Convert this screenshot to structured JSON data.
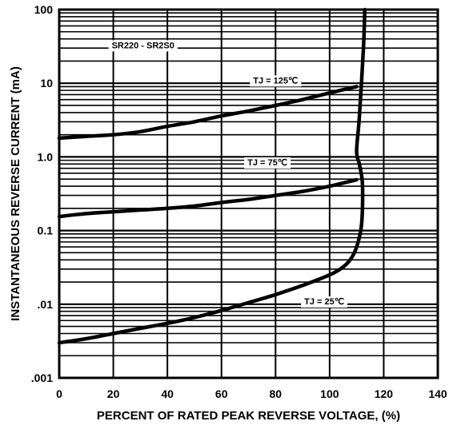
{
  "chart_data": {
    "type": "line",
    "title": "",
    "xlabel": "PERCENT OF RATED PEAK REVERSE VOLTAGE, (%)",
    "ylabel": "INSTANTANEOUS REVERSE CURRENT (mA)",
    "x_scale": "linear",
    "y_scale": "log",
    "xlim": [
      0,
      140
    ],
    "ylim": [
      0.001,
      100
    ],
    "x_ticks": [
      0,
      20,
      40,
      60,
      80,
      100,
      120,
      140
    ],
    "x_tick_labels": [
      "0",
      "20",
      "40",
      "60",
      "80",
      "100",
      "120",
      "140"
    ],
    "y_ticks": [
      0.001,
      0.01,
      0.1,
      1,
      10,
      100
    ],
    "y_tick_labels": [
      ".001",
      ".01",
      "0.1",
      "1.0",
      "10",
      "100"
    ],
    "grid": true,
    "annotations": [
      {
        "text": "SR220 - SR2S0",
        "x": 31,
        "y": 33
      },
      {
        "text": "TJ = 125℃",
        "x": 80,
        "y": 11
      },
      {
        "text": "TJ = 75℃",
        "x": 77,
        "y": 0.85
      },
      {
        "text": "TJ = 25℃",
        "x": 98,
        "y": 0.011
      }
    ],
    "series": [
      {
        "name": "TJ = 125℃",
        "x": [
          0,
          10,
          20,
          30,
          40,
          50,
          60,
          70,
          80,
          90,
          100,
          110
        ],
        "y": [
          1.8,
          1.9,
          2.0,
          2.2,
          2.6,
          3.0,
          3.6,
          4.2,
          5.0,
          6.0,
          7.4,
          9.0
        ]
      },
      {
        "name": "TJ = 75℃",
        "x": [
          0,
          10,
          20,
          30,
          40,
          50,
          60,
          70,
          80,
          90,
          100,
          110
        ],
        "y": [
          0.155,
          0.17,
          0.18,
          0.19,
          0.2,
          0.215,
          0.24,
          0.265,
          0.3,
          0.34,
          0.4,
          0.49
        ]
      },
      {
        "name": "TJ = 25℃",
        "x": [
          0,
          10,
          20,
          30,
          40,
          50,
          60,
          70,
          80,
          90,
          100,
          105,
          108,
          110,
          111.5,
          112,
          112.2,
          112,
          111,
          110,
          111,
          112.5,
          113
        ],
        "y": [
          0.003,
          0.0034,
          0.004,
          0.0047,
          0.0055,
          0.0066,
          0.0082,
          0.0105,
          0.0135,
          0.018,
          0.025,
          0.032,
          0.042,
          0.06,
          0.1,
          0.15,
          0.3,
          0.5,
          0.8,
          1.2,
          3.5,
          30,
          100
        ]
      }
    ]
  }
}
